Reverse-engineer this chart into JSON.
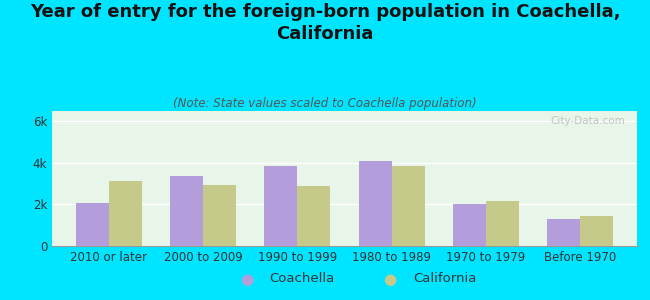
{
  "title": "Year of entry for the foreign-born population in Coachella,\nCalifornia",
  "subtitle": "(Note: State values scaled to Coachella population)",
  "categories": [
    "2010 or later",
    "2000 to 2009",
    "1990 to 1999",
    "1980 to 1989",
    "1970 to 1979",
    "Before 1970"
  ],
  "coachella_values": [
    2050,
    3350,
    3850,
    4100,
    2000,
    1300
  ],
  "california_values": [
    3150,
    2950,
    2900,
    3850,
    2150,
    1450
  ],
  "coachella_color": "#b39ddb",
  "california_color": "#c5c98a",
  "background_color": "#00e5ff",
  "plot_bg": "#e8f5e9",
  "ylabel_ticks": [
    "0",
    "2k",
    "4k",
    "6k"
  ],
  "ytick_values": [
    0,
    2000,
    4000,
    6000
  ],
  "ylim": [
    0,
    6500
  ],
  "bar_width": 0.35,
  "title_fontsize": 13,
  "subtitle_fontsize": 8.5,
  "tick_fontsize": 8.5,
  "legend_fontsize": 9.5,
  "watermark": "City-Data.com"
}
